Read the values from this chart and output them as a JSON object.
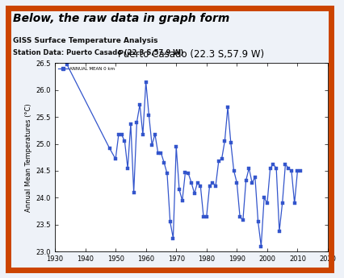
{
  "title": "Puerto Casado (22.3 S,57.9 W)",
  "header_title": "Below, the raw data in graph form",
  "subtitle1": "GISS Surface Temperature Analysis",
  "subtitle2": "Station Data: Puerto Casado (22.3 S,57.9 W)",
  "legend_label": "ANNUAL MEAN 0 km",
  "ylabel": "Annual Mean Temperatures (°C)",
  "xlim": [
    1930,
    2020
  ],
  "ylim": [
    23.0,
    26.5
  ],
  "yticks": [
    23.0,
    23.5,
    24.0,
    24.5,
    25.0,
    25.5,
    26.0,
    26.5
  ],
  "xticks": [
    1930,
    1940,
    1950,
    1960,
    1970,
    1980,
    1990,
    2000,
    2010,
    2020
  ],
  "line_color": "#3355cc",
  "marker": "s",
  "markersize": 2.5,
  "years": [
    1934,
    1948,
    1950,
    1951,
    1952,
    1953,
    1954,
    1955,
    1956,
    1957,
    1958,
    1959,
    1960,
    1961,
    1962,
    1963,
    1964,
    1965,
    1966,
    1967,
    1968,
    1969,
    1970,
    1971,
    1972,
    1973,
    1974,
    1975,
    1976,
    1977,
    1978,
    1979,
    1980,
    1981,
    1982,
    1983,
    1984,
    1985,
    1986,
    1987,
    1988,
    1989,
    1990,
    1991,
    1992,
    1993,
    1994,
    1995,
    1996,
    1997,
    1998,
    1999,
    2000,
    2001,
    2002,
    2003,
    2004,
    2005,
    2006,
    2007,
    2008,
    2009,
    2010,
    2011
  ],
  "temps": [
    26.47,
    24.92,
    24.72,
    25.17,
    25.17,
    25.05,
    24.55,
    25.37,
    24.1,
    25.4,
    25.73,
    25.17,
    26.15,
    25.53,
    24.98,
    25.18,
    24.83,
    24.83,
    24.65,
    24.45,
    23.55,
    23.25,
    24.95,
    24.15,
    23.95,
    24.47,
    24.45,
    24.28,
    24.08,
    24.28,
    24.22,
    23.65,
    23.65,
    24.22,
    24.28,
    24.22,
    24.68,
    24.72,
    25.05,
    25.68,
    25.02,
    24.5,
    24.28,
    23.65,
    23.58,
    24.32,
    24.55,
    24.28,
    24.38,
    23.55,
    23.1,
    24.0,
    23.9,
    24.55,
    24.62,
    24.55,
    23.38,
    23.9,
    24.62,
    24.55,
    24.5,
    23.9,
    24.5,
    24.5
  ],
  "bg_color": "#eef2f8",
  "plot_bg": "#ffffff",
  "border_color": "#cc4400",
  "header_bg": "#eef2f8",
  "sub_bg": "#dde8f5"
}
